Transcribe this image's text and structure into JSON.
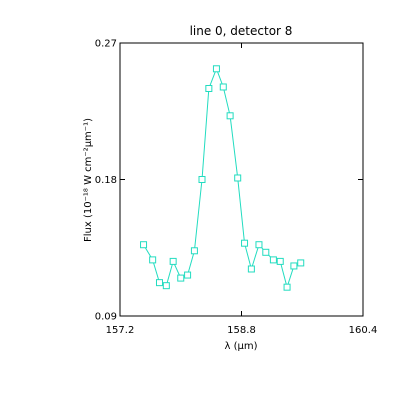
{
  "chart_data": {
    "type": "line",
    "title": "line 0, detector 8",
    "xlabel": "λ (μm)",
    "ylabel": "Flux (10⁻¹⁸ W cm⁻²μm⁻¹)",
    "xlim": [
      157.2,
      160.4
    ],
    "ylim": [
      0.09,
      0.27
    ],
    "xticks": [
      157.2,
      158.8,
      160.4
    ],
    "xtick_labels": [
      "157.2",
      "158.8",
      "160.4"
    ],
    "yticks": [
      0.09,
      0.18,
      0.27
    ],
    "ytick_labels": [
      "0.09",
      "0.18",
      "0.27"
    ],
    "grid": false,
    "marker": "square",
    "series": [
      {
        "color": "#22dcc0",
        "x": [
          157.51,
          157.63,
          157.72,
          157.81,
          157.9,
          158.0,
          158.09,
          158.18,
          158.28,
          158.37,
          158.47,
          158.56,
          158.65,
          158.75,
          158.84,
          158.93,
          159.03,
          159.12,
          159.22,
          159.31,
          159.4,
          159.49,
          159.58
        ],
        "y": [
          0.137,
          0.127,
          0.112,
          0.11,
          0.126,
          0.115,
          0.117,
          0.133,
          0.18,
          0.24,
          0.253,
          0.241,
          0.222,
          0.181,
          0.138,
          0.121,
          0.137,
          0.132,
          0.127,
          0.126,
          0.109,
          0.123,
          0.125
        ]
      }
    ]
  }
}
